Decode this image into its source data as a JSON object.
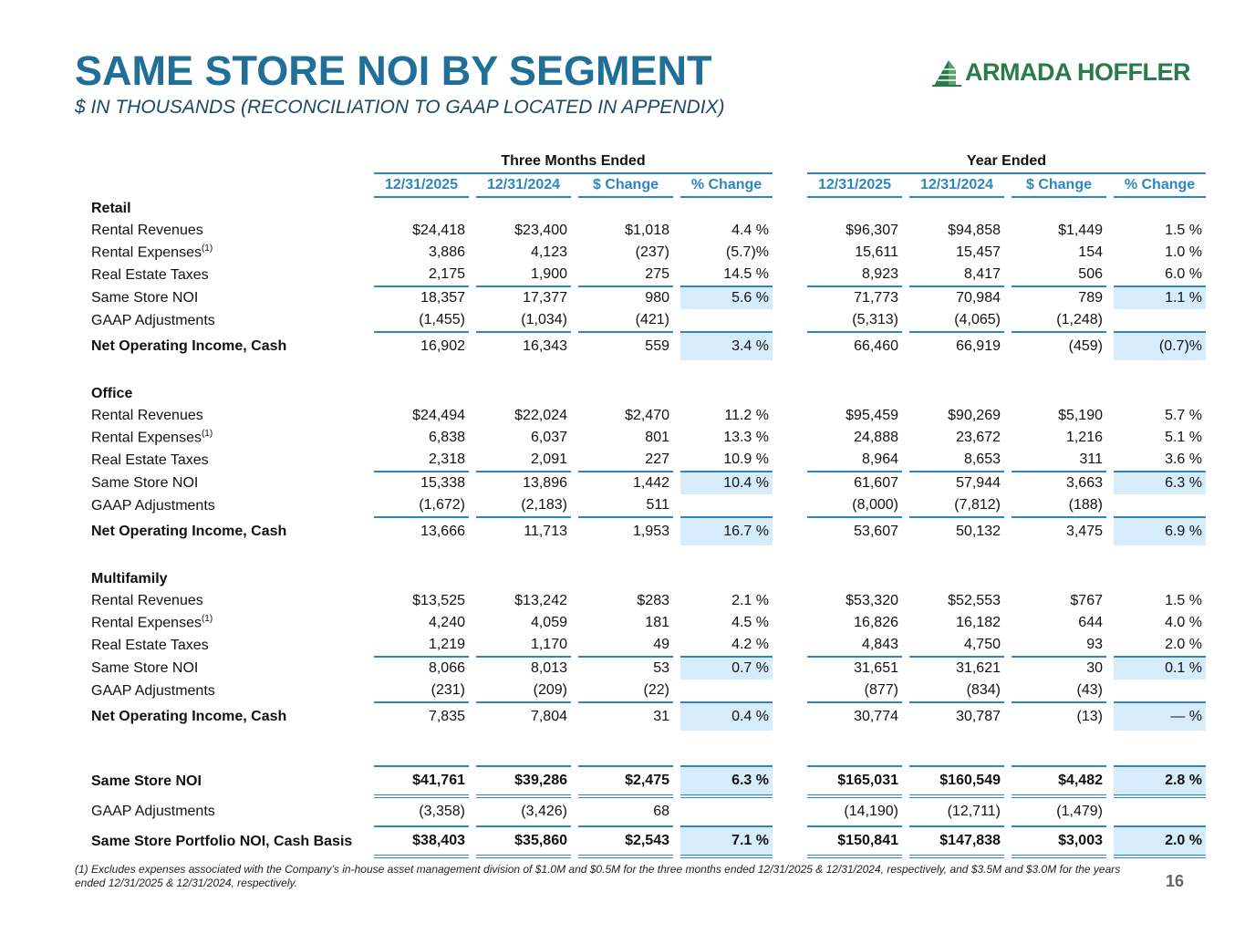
{
  "title": "SAME STORE NOI BY SEGMENT",
  "subtitle": "$ IN THOUSANDS (RECONCILIATION TO GAAP LOCATED IN APPENDIX)",
  "logo": {
    "text": "ARMADA HOFFLER",
    "color": "#2b7a4b",
    "icon": "building-icon"
  },
  "colors": {
    "title": "#1f6f99",
    "accent": "#2e86c1",
    "highlight": "#d6ecfa"
  },
  "header": {
    "group_quarter": "Three Months Ended",
    "group_year": "Year Ended",
    "columns": [
      "12/31/2025",
      "12/31/2024",
      "$ Change",
      "% Change",
      "12/31/2025",
      "12/31/2024",
      "$ Change",
      "% Change"
    ]
  },
  "segments": [
    {
      "name": "Retail",
      "rows": [
        {
          "label": "Rental Revenues",
          "values": [
            "$24,418",
            "$23,400",
            "$1,018",
            "4.4 %",
            "$96,307",
            "$94,858",
            "$1,449",
            "1.5 %"
          ]
        },
        {
          "label": "Rental Expenses",
          "sup": "(1)",
          "values": [
            "3,886",
            "4,123",
            "(237)",
            "(5.7)%",
            "15,611",
            "15,457",
            "154",
            "1.0 %"
          ]
        },
        {
          "label": "Real Estate Taxes",
          "values": [
            "2,175",
            "1,900",
            "275",
            "14.5 %",
            "8,923",
            "8,417",
            "506",
            "6.0 %"
          ]
        },
        {
          "label": "Same Store NOI",
          "values": [
            "18,357",
            "17,377",
            "980",
            "5.6 %",
            "71,773",
            "70,984",
            "789",
            "1.1 %"
          ]
        },
        {
          "label": "GAAP Adjustments",
          "values": [
            "(1,455)",
            "(1,034)",
            "(421)",
            "",
            "(5,313)",
            "(4,065)",
            "(1,248)",
            ""
          ]
        },
        {
          "label": "Net Operating Income, Cash",
          "values": [
            "16,902",
            "16,343",
            "559",
            "3.4 %",
            "66,460",
            "66,919",
            "(459)",
            "(0.7)%"
          ]
        }
      ]
    },
    {
      "name": "Office",
      "rows": [
        {
          "label": "Rental Revenues",
          "values": [
            "$24,494",
            "$22,024",
            "$2,470",
            "11.2 %",
            "$95,459",
            "$90,269",
            "$5,190",
            "5.7 %"
          ]
        },
        {
          "label": "Rental Expenses",
          "sup": "(1)",
          "values": [
            "6,838",
            "6,037",
            "801",
            "13.3 %",
            "24,888",
            "23,672",
            "1,216",
            "5.1 %"
          ]
        },
        {
          "label": "Real Estate Taxes",
          "values": [
            "2,318",
            "2,091",
            "227",
            "10.9 %",
            "8,964",
            "8,653",
            "311",
            "3.6 %"
          ]
        },
        {
          "label": "Same Store NOI",
          "values": [
            "15,338",
            "13,896",
            "1,442",
            "10.4 %",
            "61,607",
            "57,944",
            "3,663",
            "6.3 %"
          ]
        },
        {
          "label": "GAAP Adjustments",
          "values": [
            "(1,672)",
            "(2,183)",
            "511",
            "",
            "(8,000)",
            "(7,812)",
            "(188)",
            ""
          ]
        },
        {
          "label": "Net Operating Income, Cash",
          "values": [
            "13,666",
            "11,713",
            "1,953",
            "16.7 %",
            "53,607",
            "50,132",
            "3,475",
            "6.9 %"
          ]
        }
      ]
    },
    {
      "name": "Multifamily",
      "rows": [
        {
          "label": "Rental Revenues",
          "values": [
            "$13,525",
            "$13,242",
            "$283",
            "2.1 %",
            "$53,320",
            "$52,553",
            "$767",
            "1.5 %"
          ]
        },
        {
          "label": "Rental Expenses",
          "sup": "(1)",
          "values": [
            "4,240",
            "4,059",
            "181",
            "4.5 %",
            "16,826",
            "16,182",
            "644",
            "4.0 %"
          ]
        },
        {
          "label": "Real Estate Taxes",
          "values": [
            "1,219",
            "1,170",
            "49",
            "4.2 %",
            "4,843",
            "4,750",
            "93",
            "2.0 %"
          ]
        },
        {
          "label": "Same Store NOI",
          "values": [
            "8,066",
            "8,013",
            "53",
            "0.7 %",
            "31,651",
            "31,621",
            "30",
            "0.1 %"
          ]
        },
        {
          "label": "GAAP Adjustments",
          "values": [
            "(231)",
            "(209)",
            "(22)",
            "",
            "(877)",
            "(834)",
            "(43)",
            ""
          ]
        },
        {
          "label": "Net Operating Income, Cash",
          "values": [
            "7,835",
            "7,804",
            "31",
            "0.4 %",
            "30,774",
            "30,787",
            "(13)",
            "— %"
          ]
        }
      ]
    }
  ],
  "totals": [
    {
      "label": "Same Store NOI",
      "values": [
        "$41,761",
        "$39,286",
        "$2,475",
        "6.3 %",
        "$165,031",
        "$160,549",
        "$4,482",
        "2.8 %"
      ]
    },
    {
      "label": "GAAP Adjustments",
      "values": [
        "(3,358)",
        "(3,426)",
        "68",
        "",
        "(14,190)",
        "(12,711)",
        "(1,479)",
        ""
      ]
    },
    {
      "label": "Same Store Portfolio NOI, Cash Basis",
      "values": [
        "$38,403",
        "$35,860",
        "$2,543",
        "7.1 %",
        "$150,841",
        "$147,838",
        "$3,003",
        "2.0 %"
      ]
    }
  ],
  "footnote": "(1)  Excludes expenses associated with the Company’s in-house asset management division of $1.0M and $0.5M for the three months ended 12/31/2025 & 12/31/2024, respectively, and $3.5M and $3.0M for the years ended 12/31/2025 & 12/31/2024, respectively.",
  "page_number": "16"
}
